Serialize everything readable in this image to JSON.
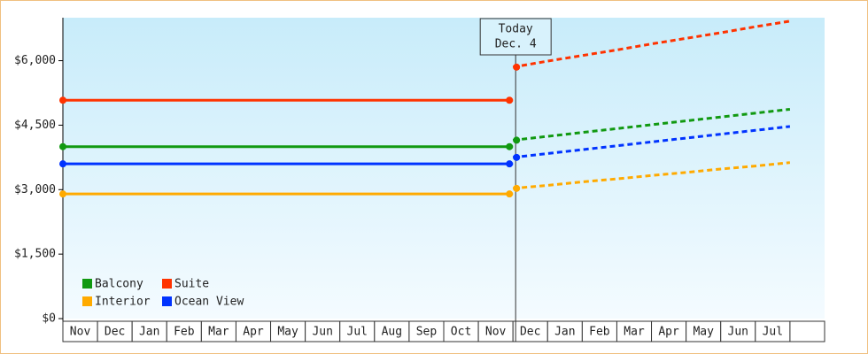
{
  "chart_data": {
    "type": "line",
    "categories": [
      "Nov",
      "Dec",
      "Jan",
      "Feb",
      "Mar",
      "Apr",
      "May",
      "Jun",
      "Jul",
      "Aug",
      "Sep",
      "Oct",
      "Nov",
      "Dec",
      "Jan",
      "Feb",
      "Mar",
      "Apr",
      "May",
      "Jun",
      "Jul",
      null
    ],
    "series": [
      {
        "name": "Balcony",
        "color": "#119911",
        "values": [
          4000,
          4000,
          4000,
          4000,
          4000,
          4000,
          4000,
          4000,
          4000,
          4000,
          4000,
          4000,
          4000,
          4000,
          null,
          null,
          null,
          null,
          null,
          null,
          null,
          null
        ],
        "forecast": [
          null,
          null,
          null,
          null,
          null,
          null,
          null,
          null,
          null,
          null,
          null,
          null,
          null,
          4150,
          4240,
          4330,
          4420,
          4510,
          4600,
          4690,
          4780,
          4870
        ]
      },
      {
        "name": "Suite",
        "color": "#ff3300",
        "values": [
          5080,
          5080,
          5080,
          5080,
          5080,
          5080,
          5080,
          5080,
          5080,
          5080,
          5080,
          5080,
          5080,
          5080,
          null,
          null,
          null,
          null,
          null,
          null,
          null,
          null
        ],
        "forecast": [
          null,
          null,
          null,
          null,
          null,
          null,
          null,
          null,
          null,
          null,
          null,
          null,
          null,
          5850,
          5990,
          6120,
          6250,
          6390,
          6520,
          6650,
          6790,
          6920
        ]
      },
      {
        "name": "Interior",
        "color": "#ffaa00",
        "values": [
          2900,
          2900,
          2900,
          2900,
          2900,
          2900,
          2900,
          2900,
          2900,
          2900,
          2900,
          2900,
          2900,
          2900,
          null,
          null,
          null,
          null,
          null,
          null,
          null,
          null
        ],
        "forecast": [
          null,
          null,
          null,
          null,
          null,
          null,
          null,
          null,
          null,
          null,
          null,
          null,
          null,
          3030,
          3100,
          3180,
          3250,
          3330,
          3400,
          3480,
          3550,
          3630
        ]
      },
      {
        "name": "Ocean View",
        "color": "#0033ff",
        "values": [
          3600,
          3600,
          3600,
          3600,
          3600,
          3600,
          3600,
          3600,
          3600,
          3600,
          3600,
          3600,
          3600,
          3600,
          null,
          null,
          null,
          null,
          null,
          null,
          null,
          null
        ],
        "forecast": [
          null,
          null,
          null,
          null,
          null,
          null,
          null,
          null,
          null,
          null,
          null,
          null,
          null,
          3750,
          3840,
          3930,
          4020,
          4110,
          4200,
          4290,
          4380,
          4470
        ]
      }
    ],
    "ylim": [
      0,
      7000
    ],
    "yticks": [
      {
        "value": 0,
        "label": "$0"
      },
      {
        "value": 1500,
        "label": "$1,500"
      },
      {
        "value": 3000,
        "label": "$3,000"
      },
      {
        "value": 4500,
        "label": "$4,500"
      },
      {
        "value": 6000,
        "label": "$6,000"
      }
    ],
    "annotation": [
      "Today",
      "Dec. 4"
    ],
    "legend": "lower left"
  }
}
